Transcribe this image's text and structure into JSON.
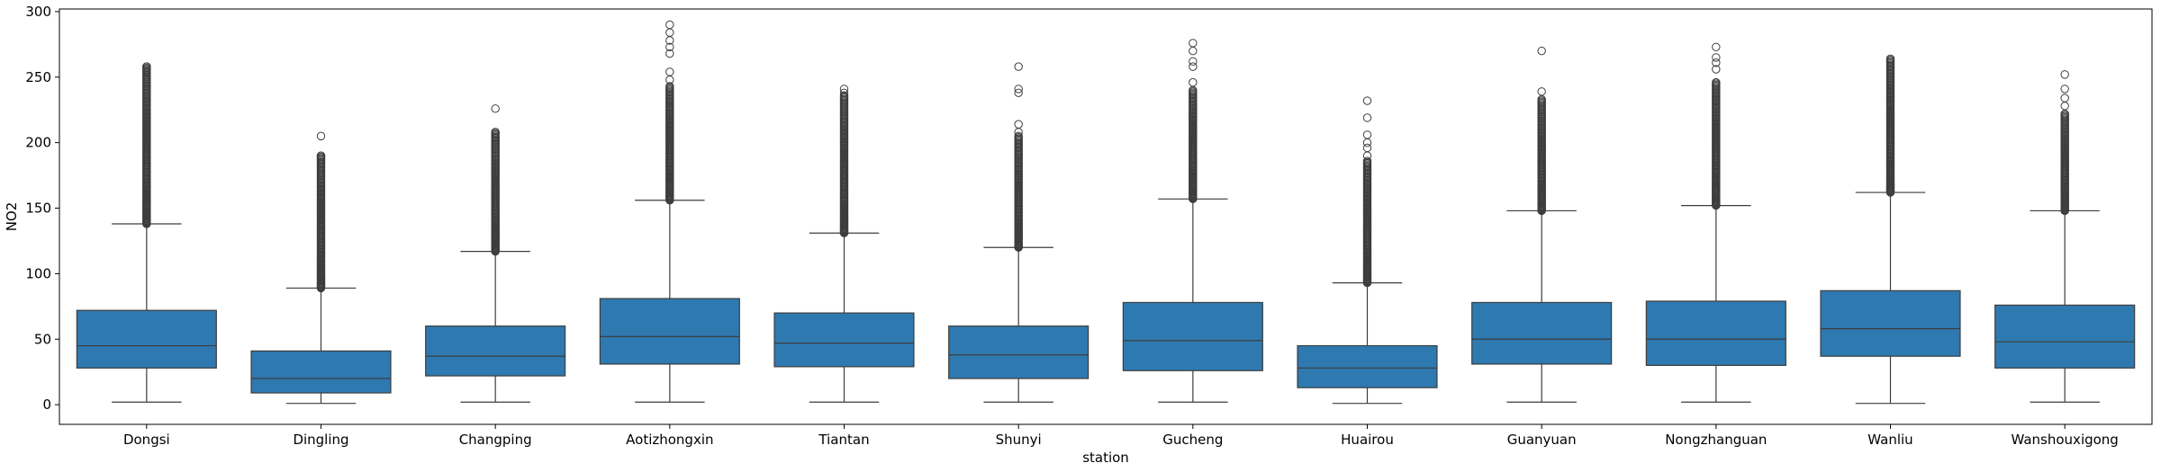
{
  "chart_data": {
    "type": "box",
    "xlabel": "station",
    "ylabel": "NO2",
    "ylim": [
      -15,
      302
    ],
    "yticks": [
      0,
      50,
      100,
      150,
      200,
      250,
      300
    ],
    "box_color": "#2e79b0",
    "line_color": "#3d3d3d",
    "categories": [
      "Dongsi",
      "Dingling",
      "Changping",
      "Aotizhongxin",
      "Tiantan",
      "Shunyi",
      "Gucheng",
      "Huairou",
      "Guanyuan",
      "Nongzhanguan",
      "Wanliu",
      "Wanshouxigong"
    ],
    "boxes": [
      {
        "whislo": 2,
        "q1": 28,
        "med": 45,
        "q3": 72,
        "whishi": 138,
        "flier_min": 138,
        "flier_max": 258,
        "sparse": [
          250,
          254,
          256,
          258
        ]
      },
      {
        "whislo": 1,
        "q1": 9,
        "med": 20,
        "q3": 41,
        "whishi": 89,
        "flier_min": 89,
        "flier_max": 190,
        "sparse": [
          185,
          188,
          190,
          205
        ]
      },
      {
        "whislo": 2,
        "q1": 22,
        "med": 37,
        "q3": 60,
        "whishi": 117,
        "flier_min": 117,
        "flier_max": 208,
        "sparse": [
          204,
          208,
          226
        ]
      },
      {
        "whislo": 2,
        "q1": 31,
        "med": 52,
        "q3": 81,
        "whishi": 156,
        "flier_min": 156,
        "flier_max": 243,
        "sparse": [
          248,
          254,
          268,
          273,
          278,
          284,
          290
        ]
      },
      {
        "whislo": 2,
        "q1": 29,
        "med": 47,
        "q3": 70,
        "whishi": 131,
        "flier_min": 131,
        "flier_max": 236,
        "sparse": [
          238,
          241
        ]
      },
      {
        "whislo": 2,
        "q1": 20,
        "med": 38,
        "q3": 60,
        "whishi": 120,
        "flier_min": 120,
        "flier_max": 205,
        "sparse": [
          208,
          214,
          238,
          241,
          258
        ]
      },
      {
        "whislo": 2,
        "q1": 26,
        "med": 49,
        "q3": 78,
        "whishi": 157,
        "flier_min": 157,
        "flier_max": 240,
        "sparse": [
          246,
          258,
          262,
          270,
          276
        ]
      },
      {
        "whislo": 1,
        "q1": 13,
        "med": 28,
        "q3": 45,
        "whishi": 93,
        "flier_min": 93,
        "flier_max": 186,
        "sparse": [
          190,
          196,
          200,
          206,
          219,
          232
        ]
      },
      {
        "whislo": 2,
        "q1": 31,
        "med": 50,
        "q3": 78,
        "whishi": 148,
        "flier_min": 148,
        "flier_max": 233,
        "sparse": [
          239,
          270
        ]
      },
      {
        "whislo": 2,
        "q1": 30,
        "med": 50,
        "q3": 79,
        "whishi": 152,
        "flier_min": 152,
        "flier_max": 246,
        "sparse": [
          256,
          261,
          265,
          273
        ]
      },
      {
        "whislo": 1,
        "q1": 37,
        "med": 58,
        "q3": 87,
        "whishi": 162,
        "flier_min": 162,
        "flier_max": 264,
        "sparse": []
      },
      {
        "whislo": 2,
        "q1": 28,
        "med": 48,
        "q3": 76,
        "whishi": 148,
        "flier_min": 148,
        "flier_max": 222,
        "sparse": [
          228,
          234,
          241,
          252
        ]
      }
    ]
  }
}
